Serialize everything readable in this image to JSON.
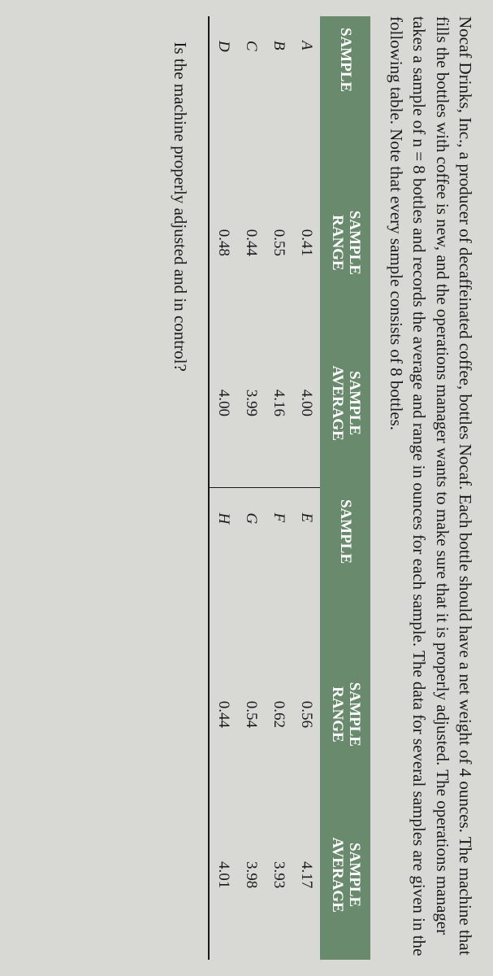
{
  "paragraph": "Nocaf Drinks, Inc., a producer of decaffeinated coffee, bottles Nocaf. Each bottle should have a net weight of 4 ounces. The machine that fills the bottles with coffee is new, and the operations manager wants to make sure that it is properly adjusted. The operations manager takes a sample of n = 8 bottles and records the average and range in ounces for each sample. The data for several samples are given in the following table. Note that every sample consists of 8 bottles.",
  "table": {
    "headers": {
      "sample": "SAMPLE",
      "range_top": "SAMPLE",
      "range_bot": "RANGE",
      "avg_top": "SAMPLE",
      "avg_bot": "AVERAGE"
    },
    "left_rows": [
      {
        "label": "A",
        "range": "0.41",
        "avg": "4.00"
      },
      {
        "label": "B",
        "range": "0.55",
        "avg": "4.16"
      },
      {
        "label": "C",
        "range": "0.44",
        "avg": "3.99"
      },
      {
        "label": "D",
        "range": "0.48",
        "avg": "4.00"
      }
    ],
    "right_rows": [
      {
        "label": "E",
        "range": "0.56",
        "avg": "4.17"
      },
      {
        "label": "F",
        "range": "0.62",
        "avg": "3.93"
      },
      {
        "label": "G",
        "range": "0.54",
        "avg": "3.98"
      },
      {
        "label": "H",
        "range": "0.44",
        "avg": "4.01"
      }
    ],
    "colors": {
      "header_bg": "#6a8a6e",
      "header_fg": "#ffffff",
      "rule": "#1a1a1a",
      "page_bg": "#d8d8d4",
      "text": "#1a1a1a"
    },
    "font": {
      "body_size_pt": 16,
      "table_size_pt": 14,
      "family": "Times New Roman"
    }
  },
  "question": "Is the machine properly adjusted and in control?"
}
